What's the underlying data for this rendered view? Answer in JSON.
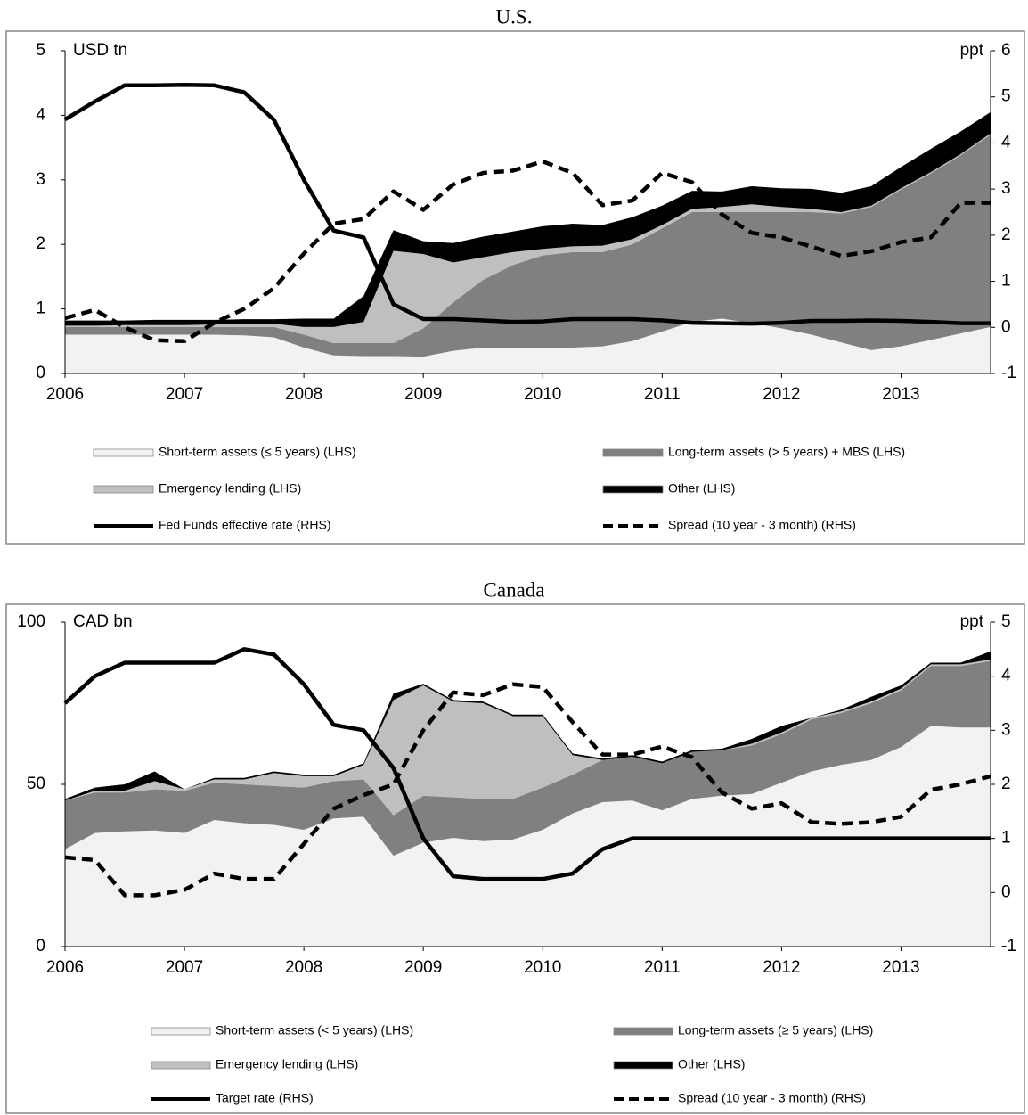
{
  "chart_data": [
    {
      "type": "area",
      "title": "U.S.",
      "y_label": "USD tn",
      "y2_label": "ppt",
      "x": [
        2006,
        2006.25,
        2006.5,
        2006.75,
        2007,
        2007.25,
        2007.5,
        2007.75,
        2008,
        2008.25,
        2008.5,
        2008.75,
        2009,
        2009.25,
        2009.5,
        2009.75,
        2010,
        2010.25,
        2010.5,
        2010.75,
        2011,
        2011.25,
        2011.5,
        2011.75,
        2012,
        2012.25,
        2012.5,
        2012.75,
        2013,
        2013.25,
        2013.5,
        2013.75
      ],
      "xlim": [
        2006,
        2013.75
      ],
      "xticks": [
        2006,
        2007,
        2008,
        2009,
        2010,
        2011,
        2012,
        2013
      ],
      "ylim": [
        0,
        5
      ],
      "yticks": [
        0,
        1,
        2,
        3,
        4,
        5
      ],
      "y2lim": [
        -1,
        6
      ],
      "y2ticks": [
        -1,
        0,
        1,
        2,
        3,
        4,
        5,
        6
      ],
      "series": [
        {
          "name": "Short-term assets (≤ 5 years) (LHS)",
          "type": "area",
          "color": "#f2f2f2",
          "values": [
            0.6,
            0.6,
            0.6,
            0.6,
            0.6,
            0.6,
            0.59,
            0.56,
            0.4,
            0.28,
            0.27,
            0.27,
            0.26,
            0.35,
            0.4,
            0.4,
            0.4,
            0.4,
            0.42,
            0.5,
            0.65,
            0.8,
            0.85,
            0.78,
            0.7,
            0.6,
            0.48,
            0.36,
            0.42,
            0.52,
            0.62,
            0.72
          ]
        },
        {
          "name": "Long-term assets (> 5 years) + MBS (LHS)",
          "type": "area",
          "color": "#808080",
          "values": [
            0.12,
            0.12,
            0.12,
            0.12,
            0.12,
            0.12,
            0.13,
            0.16,
            0.2,
            0.19,
            0.2,
            0.2,
            0.44,
            0.75,
            1.05,
            1.28,
            1.43,
            1.48,
            1.46,
            1.5,
            1.6,
            1.7,
            1.65,
            1.72,
            1.8,
            1.9,
            2.0,
            2.22,
            2.43,
            2.58,
            2.76,
            2.98
          ]
        },
        {
          "name": "Emergency lending (LHS)",
          "type": "area",
          "color": "#bfbfbf",
          "values": [
            0.02,
            0.02,
            0.03,
            0.03,
            0.03,
            0.04,
            0.05,
            0.05,
            0.12,
            0.25,
            0.33,
            1.43,
            1.15,
            0.62,
            0.35,
            0.2,
            0.1,
            0.09,
            0.1,
            0.08,
            0.05,
            0.05,
            0.08,
            0.12,
            0.08,
            0.05,
            0.02,
            0.02,
            0.02,
            0.02,
            0.02,
            0.02
          ]
        },
        {
          "name": "Other (LHS)",
          "type": "area",
          "color": "#000000",
          "values": [
            0.08,
            0.08,
            0.07,
            0.08,
            0.08,
            0.07,
            0.07,
            0.07,
            0.13,
            0.13,
            0.4,
            0.32,
            0.2,
            0.3,
            0.32,
            0.32,
            0.35,
            0.35,
            0.32,
            0.34,
            0.3,
            0.28,
            0.24,
            0.28,
            0.29,
            0.31,
            0.3,
            0.3,
            0.33,
            0.36,
            0.35,
            0.33
          ]
        },
        {
          "name": "Fed Funds effective rate (RHS)",
          "type": "line",
          "axis": "y2",
          "color": "#000000",
          "values": [
            4.51,
            4.9,
            5.25,
            5.25,
            5.26,
            5.25,
            5.1,
            4.5,
            3.2,
            2.1,
            1.95,
            0.5,
            0.18,
            0.18,
            0.15,
            0.12,
            0.13,
            0.18,
            0.18,
            0.18,
            0.15,
            0.1,
            0.09,
            0.08,
            0.1,
            0.14,
            0.14,
            0.15,
            0.14,
            0.12,
            0.09,
            0.09
          ]
        },
        {
          "name": "Spread (10 year - 3 month) (RHS)",
          "type": "line",
          "axis": "y2",
          "dashed": true,
          "color": "#000000",
          "values": [
            0.2,
            0.38,
            0,
            -0.28,
            -0.3,
            0.1,
            0.4,
            0.85,
            1.6,
            2.25,
            2.35,
            2.95,
            2.55,
            3.1,
            3.35,
            3.4,
            3.6,
            3.35,
            2.65,
            2.75,
            3.35,
            3.15,
            2.45,
            2.05,
            1.95,
            1.75,
            1.55,
            1.65,
            1.85,
            1.95,
            2.7,
            2.7
          ]
        }
      ]
    },
    {
      "type": "area",
      "title": "Canada",
      "y_label": "CAD bn",
      "y2_label": "ppt",
      "x": [
        2006,
        2006.25,
        2006.5,
        2006.75,
        2007,
        2007.25,
        2007.5,
        2007.75,
        2008,
        2008.25,
        2008.5,
        2008.75,
        2009,
        2009.25,
        2009.5,
        2009.75,
        2010,
        2010.25,
        2010.5,
        2010.75,
        2011,
        2011.25,
        2011.5,
        2011.75,
        2012,
        2012.25,
        2012.5,
        2012.75,
        2013,
        2013.25,
        2013.5,
        2013.75
      ],
      "xlim": [
        2006,
        2013.75
      ],
      "xticks": [
        2006,
        2007,
        2008,
        2009,
        2010,
        2011,
        2012,
        2013
      ],
      "ylim": [
        0,
        100
      ],
      "yticks": [
        0,
        50,
        100
      ],
      "y2lim": [
        -1,
        5
      ],
      "y2ticks": [
        -1,
        0,
        1,
        2,
        3,
        4,
        5
      ],
      "series": [
        {
          "name": "Short-term assets (< 5 years) (LHS)",
          "type": "area",
          "color": "#f2f2f2",
          "values": [
            30,
            35,
            35.5,
            35.8,
            35,
            39,
            38,
            37.5,
            36,
            39.5,
            40,
            28,
            32,
            33.5,
            32.5,
            33,
            36,
            41,
            44.5,
            45,
            42,
            45.5,
            46.5,
            47,
            50.5,
            54,
            56,
            57.5,
            61.5,
            68,
            67.5,
            67.5
          ]
        },
        {
          "name": "Long-term assets (≥ 5 years) (LHS)",
          "type": "area",
          "color": "#808080",
          "values": [
            15,
            12.5,
            12,
            12.7,
            13,
            11.5,
            12,
            12,
            13,
            11.5,
            11.5,
            12.5,
            14.5,
            12.5,
            13,
            12.5,
            13,
            12,
            13,
            13.5,
            14.5,
            14.5,
            14,
            15,
            15,
            16,
            16,
            17.5,
            17.5,
            18.5,
            19,
            20.5
          ]
        },
        {
          "name": "Emergency lending (LHS)",
          "type": "area",
          "color": "#bfbfbf",
          "values": [
            0,
            0.5,
            0.5,
            2.5,
            0.5,
            1,
            1.5,
            4,
            3.5,
            1.5,
            4.5,
            35.5,
            34,
            29.5,
            29.5,
            25.5,
            22,
            6,
            0,
            0,
            0,
            0,
            0,
            0.5,
            0.5,
            0.5,
            0.5,
            0.5,
            0.5,
            0.5,
            0.5,
            0.5
          ]
        },
        {
          "name": "Other (LHS)",
          "type": "area",
          "color": "#000000",
          "values": [
            0.5,
            1,
            2,
            3,
            0,
            0.5,
            0.5,
            0.5,
            0.5,
            0.5,
            0.5,
            2,
            0.5,
            0.5,
            0.5,
            0.5,
            0.5,
            0.5,
            0.5,
            0.5,
            0.5,
            0.5,
            0.5,
            1.5,
            2,
            0,
            0.5,
            1.5,
            1,
            0.5,
            0.5,
            2.5
          ]
        },
        {
          "name": "Target rate (RHS)",
          "type": "line",
          "axis": "y2",
          "color": "#000000",
          "values": [
            3.5,
            4,
            4.25,
            4.25,
            4.25,
            4.25,
            4.5,
            4.4,
            3.85,
            3.1,
            3,
            2.3,
            1,
            0.3,
            0.25,
            0.25,
            0.25,
            0.35,
            0.8,
            1,
            1,
            1,
            1,
            1,
            1,
            1,
            1,
            1,
            1,
            1,
            1,
            1
          ]
        },
        {
          "name": "Spread (10 year - 3 month) (RHS)",
          "type": "line",
          "axis": "y2",
          "dashed": true,
          "color": "#000000",
          "values": [
            0.65,
            0.6,
            -0.05,
            -0.05,
            0.05,
            0.35,
            0.25,
            0.25,
            0.9,
            1.55,
            1.8,
            2,
            3,
            3.7,
            3.65,
            3.85,
            3.8,
            3.15,
            2.55,
            2.55,
            2.7,
            2.5,
            1.85,
            1.55,
            1.65,
            1.3,
            1.27,
            1.3,
            1.4,
            1.9,
            2,
            2.15
          ]
        }
      ]
    }
  ]
}
